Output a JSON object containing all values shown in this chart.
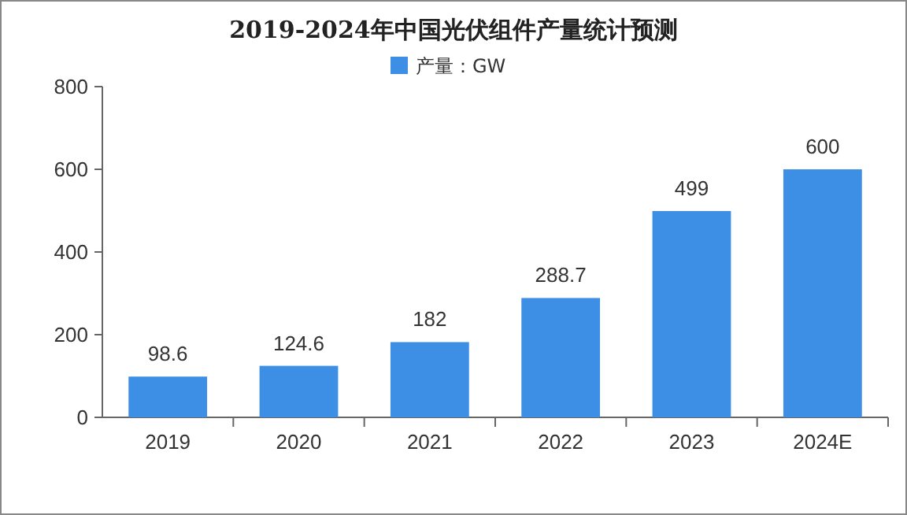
{
  "chart_data": {
    "type": "bar",
    "title": "2019-2024年中国光伏组件产量统计预测",
    "categories": [
      "2019",
      "2020",
      "2021",
      "2022",
      "2023",
      "2024E"
    ],
    "series": [
      {
        "name": "产量：GW",
        "color": "#3d8fe6",
        "values": [
          98.6,
          124.6,
          182,
          288.7,
          499,
          600
        ]
      }
    ],
    "ylim": [
      0,
      800
    ],
    "yticks": [
      0,
      200,
      400,
      600,
      800
    ],
    "grid": false,
    "legend": "top",
    "data_labels": true
  }
}
